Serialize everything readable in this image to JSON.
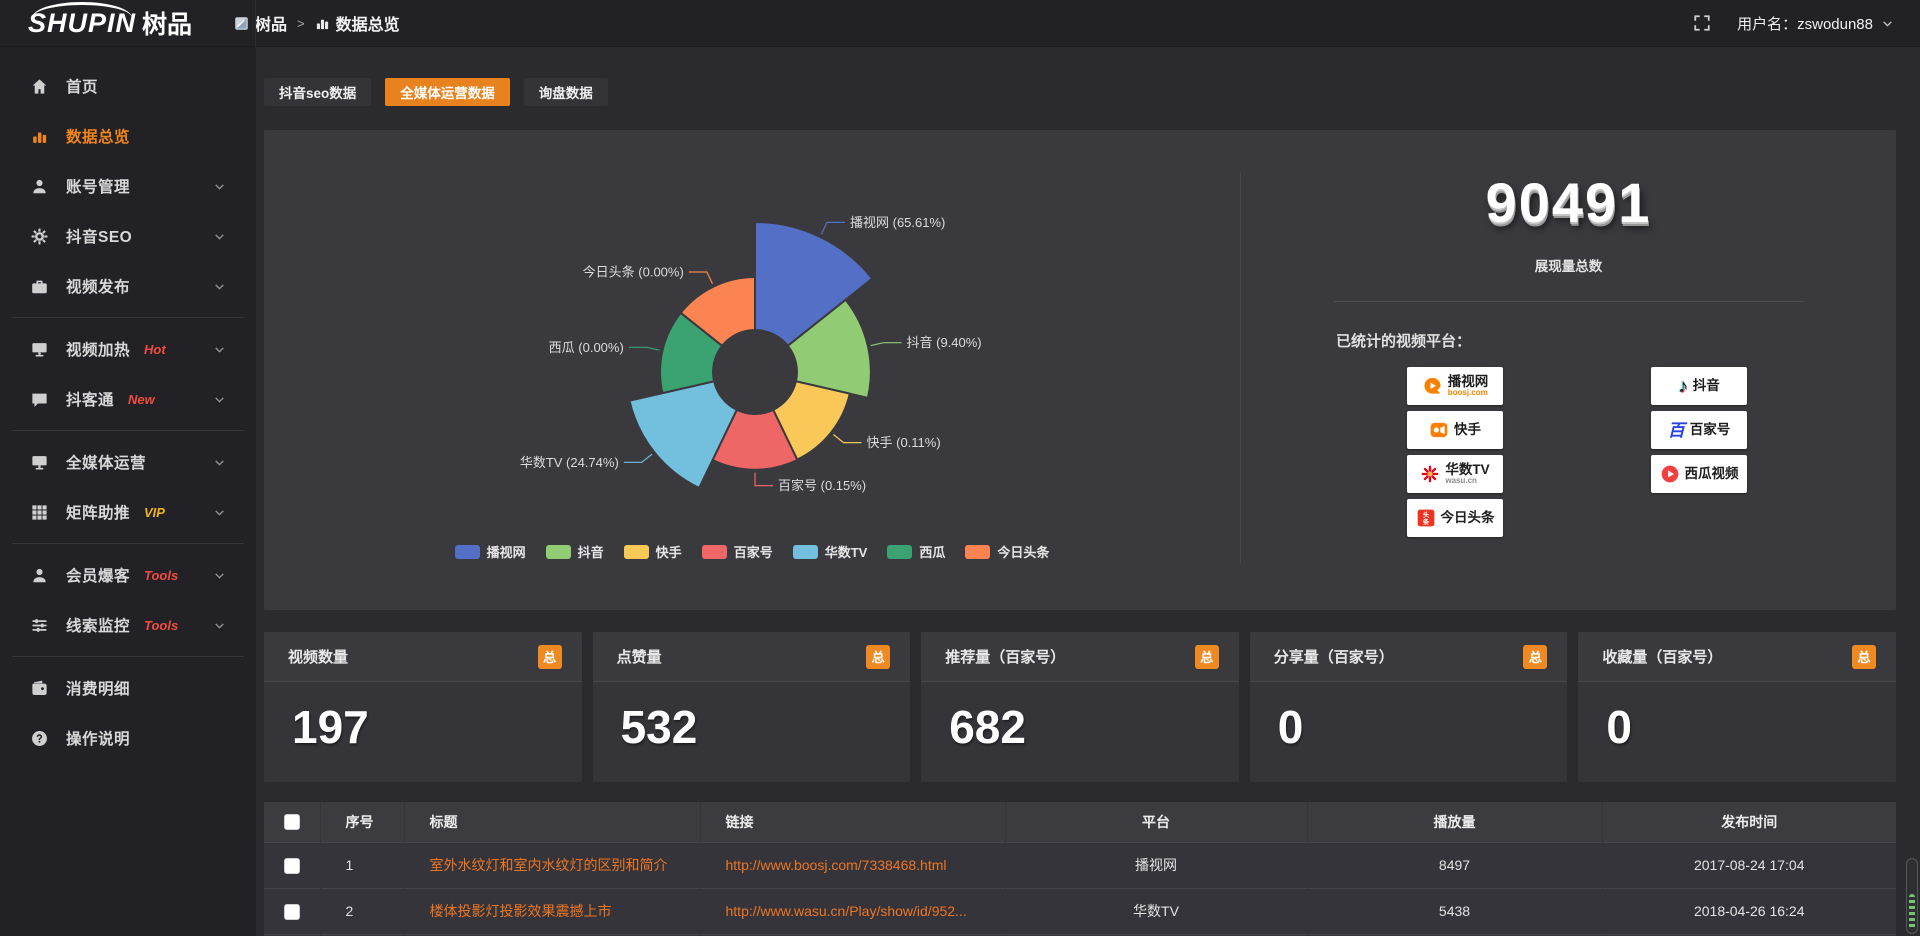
{
  "topbar": {
    "logo_en": "SHUPIN",
    "logo_cn": "树品",
    "breadcrumb": {
      "items": [
        {
          "label": "树品",
          "icon": "app-icon"
        },
        {
          "label": "数据总览",
          "icon": "bar-chart-icon"
        }
      ],
      "separator": ">"
    },
    "user_label": "用户名：zswodun88"
  },
  "sidebar": {
    "items": [
      {
        "name": "home",
        "label": "首页",
        "icon": "home"
      },
      {
        "name": "data-overview",
        "label": "数据总览",
        "icon": "chart",
        "active": true
      },
      {
        "name": "account-management",
        "label": "账号管理",
        "icon": "user",
        "expandable": true
      },
      {
        "name": "douyin-seo",
        "label": "抖音SEO",
        "icon": "gear",
        "expandable": true
      },
      {
        "name": "video-publish",
        "label": "视频发布",
        "icon": "briefcase",
        "expandable": true
      },
      {
        "divider": true
      },
      {
        "name": "video-heating",
        "label": "视频加热",
        "icon": "monitor",
        "badge": "Hot",
        "badge_color": "#f34b3f",
        "expandable": true
      },
      {
        "name": "douketong",
        "label": "抖客通",
        "icon": "chat",
        "badge": "New",
        "badge_color": "#f34b3f",
        "expandable": true
      },
      {
        "divider": true
      },
      {
        "name": "omnimedia-operation",
        "label": "全媒体运营",
        "icon": "monitor",
        "expandable": true
      },
      {
        "name": "matrix-boost",
        "label": "矩阵助推",
        "icon": "grid",
        "badge": "VIP",
        "badge_color": "#efb41d",
        "expandable": true
      },
      {
        "divider": true
      },
      {
        "name": "member-baoke",
        "label": "会员爆客",
        "icon": "user",
        "badge": "Tools",
        "badge_color": "#f34b3f",
        "expandable": true
      },
      {
        "name": "leads-monitor",
        "label": "线索监控",
        "icon": "sliders",
        "badge": "Tools",
        "badge_color": "#f34b3f",
        "expandable": true
      },
      {
        "divider": true
      },
      {
        "name": "spending-details",
        "label": "消费明细",
        "icon": "wallet"
      },
      {
        "name": "instructions",
        "label": "操作说明",
        "icon": "help"
      }
    ]
  },
  "tabs": [
    {
      "name": "douyin-seo-data",
      "label": "抖音seo数据"
    },
    {
      "name": "omnimedia-data",
      "label": "全媒体运营数据",
      "active": true
    },
    {
      "name": "inquiry-data",
      "label": "询盘数据"
    }
  ],
  "chart_data": {
    "type": "pie",
    "variant": "nightingale-rose",
    "title": "",
    "categories": [
      "播视网",
      "抖音",
      "快手",
      "百家号",
      "华数TV",
      "西瓜",
      "今日头条"
    ],
    "values": [
      65.61,
      9.4,
      0.11,
      0.15,
      24.74,
      0,
      0
    ],
    "unit": "%",
    "colors": [
      "#5470c6",
      "#91cc75",
      "#fac858",
      "#ee6666",
      "#73c0de",
      "#3ba272",
      "#fc8452"
    ],
    "legend_position": "bottom"
  },
  "summary": {
    "total": "90491",
    "total_label": "展现量总数",
    "platforms_label": "已统计的视频平台：",
    "platforms": [
      {
        "name": "播视网",
        "sub": "boosj.com",
        "icon": "boosj-logo",
        "column": 1
      },
      {
        "name": "快手",
        "icon": "kuaishou-logo",
        "column": 1
      },
      {
        "name": "华数TV",
        "sub": "wasu.cn",
        "icon": "wasu-logo",
        "column": 1
      },
      {
        "name": "今日头条",
        "icon": "toutiao-logo",
        "column": 1
      },
      {
        "name": "抖音",
        "icon": "douyin-logo",
        "column": 2
      },
      {
        "name": "百家号",
        "icon": "baijiahao-logo",
        "column": 2
      },
      {
        "name": "西瓜视频",
        "icon": "xigua-logo",
        "column": 2
      }
    ]
  },
  "stat_cards": [
    {
      "title": "视频数量",
      "badge": "总",
      "value": "197"
    },
    {
      "title": "点赞量",
      "badge": "总",
      "value": "532"
    },
    {
      "title": "推荐量（百家号）",
      "badge": "总",
      "value": "682"
    },
    {
      "title": "分享量（百家号）",
      "badge": "总",
      "value": "0"
    },
    {
      "title": "收藏量（百家号）",
      "badge": "总",
      "value": "0"
    }
  ],
  "table": {
    "headers": [
      "序号",
      "标题",
      "链接",
      "平台",
      "播放量",
      "发布时间"
    ],
    "rows": [
      {
        "index": "1",
        "title": "室外水纹灯和室内水纹灯的区别和简介",
        "link": "http://www.boosj.com/7338468.html",
        "platform": "播视网",
        "plays": "8497",
        "time": "2017-08-24 17:04"
      },
      {
        "index": "2",
        "title": "楼体投影灯投影效果震撼上市",
        "link": "http://www.wasu.cn/Play/show/id/952...",
        "platform": "华数TV",
        "plays": "5438",
        "time": "2018-04-26 16:24"
      }
    ]
  },
  "colors": {
    "accent": "#e8821e",
    "link": "#ee7623",
    "badge": "#ef8a23",
    "sidebar_active": "#f08519"
  }
}
